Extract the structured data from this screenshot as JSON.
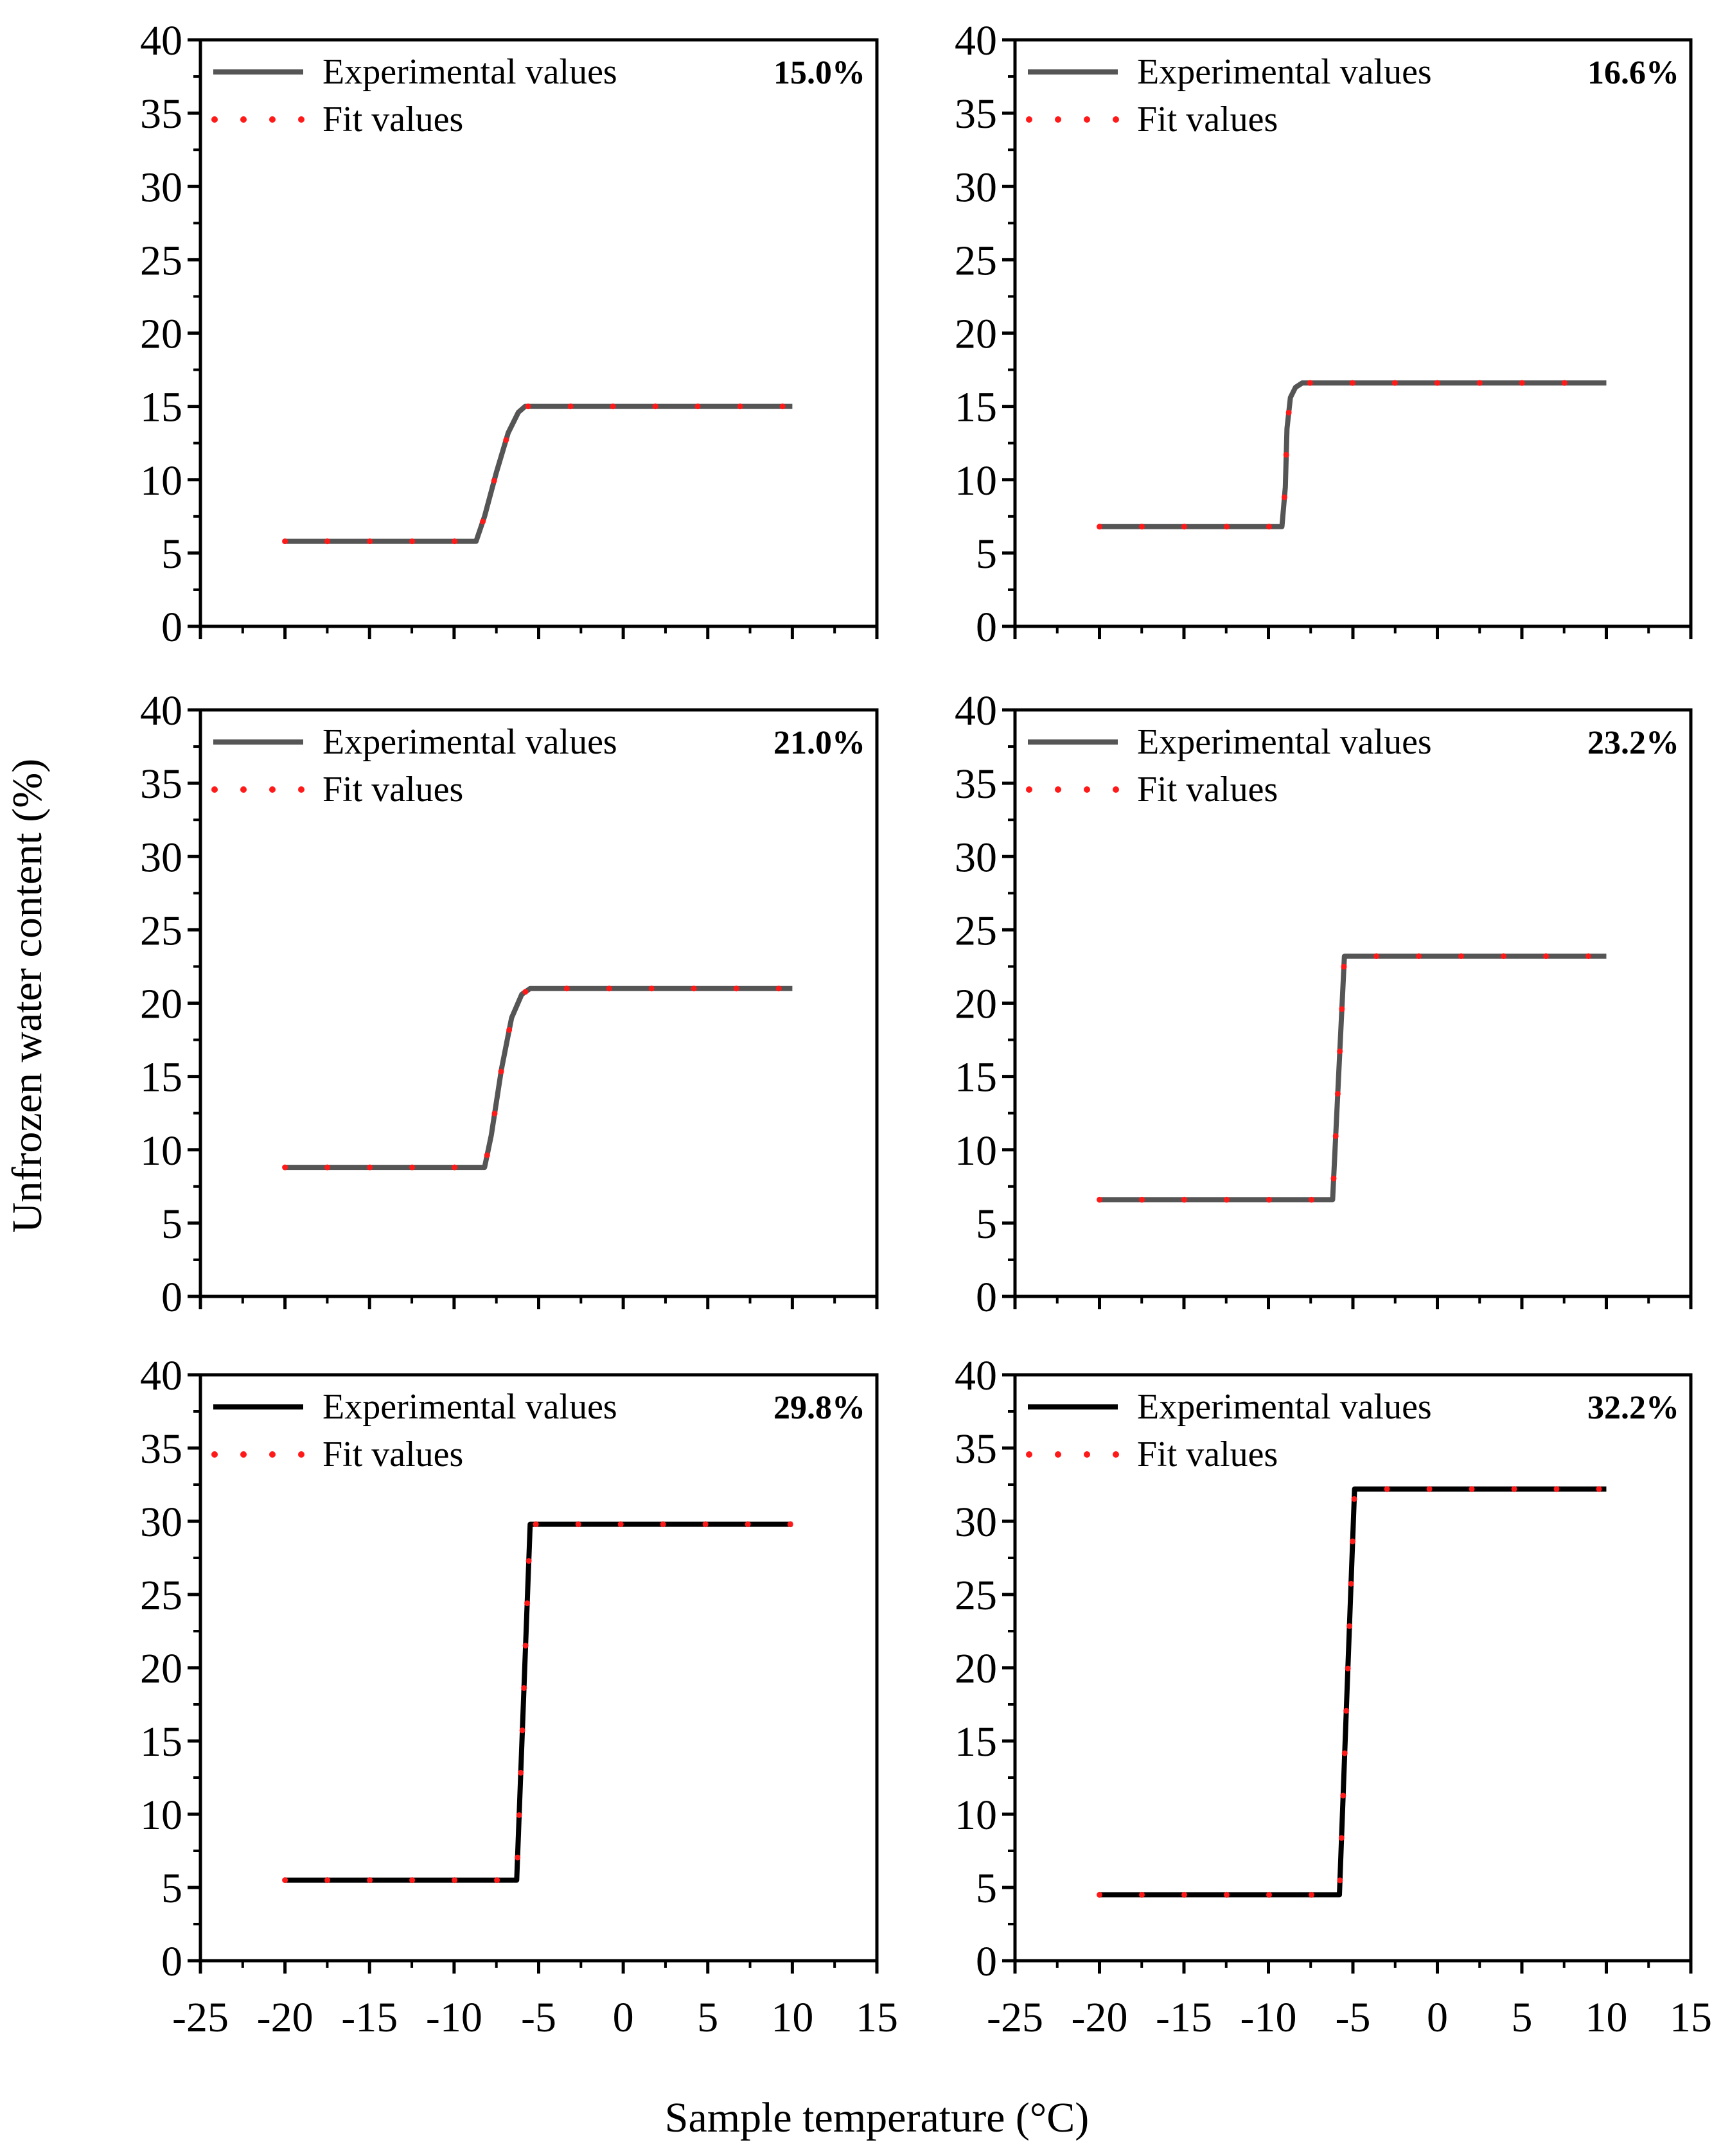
{
  "figure": {
    "xlabel": "Sample temperature (°C)",
    "ylabel": "Unfrozen water content (%)"
  },
  "colors": {
    "fit": "#ff1a1a",
    "experimental_dark": "#000000",
    "experimental_gray": "#555555",
    "axes": "#000000"
  },
  "legend": {
    "experimental": "Experimental values",
    "fit": "Fit values"
  },
  "chart_data": [
    {
      "type": "line",
      "panel_label": "15.0%",
      "xlim": [
        -25,
        15
      ],
      "ylim": [
        0,
        40
      ],
      "xticks": [
        -25,
        -20,
        -15,
        -10,
        -5,
        0,
        5,
        10,
        15
      ],
      "yticks": [
        0,
        5,
        10,
        15,
        20,
        25,
        30,
        35,
        40
      ],
      "experimental_color": "gray",
      "series": [
        {
          "name": "Experimental values",
          "x": [
            -20,
            -8.7,
            -8.2,
            -7.5,
            -6.8,
            -6.2,
            -5.8,
            10
          ],
          "y": [
            5.8,
            5.8,
            7.5,
            10.5,
            13.2,
            14.6,
            15.0,
            15.0
          ]
        },
        {
          "name": "Fit values",
          "x": [
            -20,
            -8.7,
            -8.2,
            -7.5,
            -6.8,
            -6.2,
            -5.8,
            10
          ],
          "y": [
            5.8,
            5.8,
            7.5,
            10.5,
            13.2,
            14.6,
            15.0,
            15.0
          ]
        }
      ]
    },
    {
      "type": "line",
      "panel_label": "16.6%",
      "xlim": [
        -25,
        15
      ],
      "ylim": [
        0,
        40
      ],
      "xticks": [
        -25,
        -20,
        -15,
        -10,
        -5,
        0,
        5,
        10,
        15
      ],
      "yticks": [
        0,
        5,
        10,
        15,
        20,
        25,
        30,
        35,
        40
      ],
      "experimental_color": "gray",
      "series": [
        {
          "name": "Experimental values",
          "x": [
            -20,
            -9.2,
            -9.0,
            -8.9,
            -8.7,
            -8.4,
            -8.0,
            10
          ],
          "y": [
            6.8,
            6.8,
            9.5,
            13.5,
            15.6,
            16.3,
            16.6,
            16.6
          ]
        },
        {
          "name": "Fit values",
          "x": [
            -20,
            -9.2,
            -9.0,
            -8.9,
            -8.7,
            -8.4,
            -8.0,
            10
          ],
          "y": [
            6.8,
            6.8,
            9.5,
            13.5,
            15.6,
            16.3,
            16.6,
            16.6
          ]
        }
      ]
    },
    {
      "type": "line",
      "panel_label": "21.0%",
      "xlim": [
        -25,
        15
      ],
      "ylim": [
        0,
        40
      ],
      "xticks": [
        -25,
        -20,
        -15,
        -10,
        -5,
        0,
        5,
        10,
        15
      ],
      "yticks": [
        0,
        5,
        10,
        15,
        20,
        25,
        30,
        35,
        40
      ],
      "experimental_color": "gray",
      "series": [
        {
          "name": "Experimental values",
          "x": [
            -20,
            -8.2,
            -7.8,
            -7.2,
            -6.6,
            -6.0,
            -5.5,
            10
          ],
          "y": [
            8.8,
            8.8,
            11.0,
            15.5,
            19.0,
            20.6,
            21.0,
            21.0
          ]
        },
        {
          "name": "Fit values",
          "x": [
            -20,
            -8.2,
            -7.8,
            -7.2,
            -6.6,
            -6.0,
            -5.5,
            10
          ],
          "y": [
            8.8,
            8.8,
            11.0,
            15.5,
            19.0,
            20.6,
            21.0,
            21.0
          ]
        }
      ]
    },
    {
      "type": "line",
      "panel_label": "23.2%",
      "xlim": [
        -25,
        15
      ],
      "ylim": [
        0,
        40
      ],
      "xticks": [
        -25,
        -20,
        -15,
        -10,
        -5,
        0,
        5,
        10,
        15
      ],
      "yticks": [
        0,
        5,
        10,
        15,
        20,
        25,
        30,
        35,
        40
      ],
      "experimental_color": "gray",
      "series": [
        {
          "name": "Experimental values",
          "x": [
            -20,
            -6.2,
            -5.5,
            10
          ],
          "y": [
            6.6,
            6.6,
            23.2,
            23.2
          ]
        },
        {
          "name": "Fit values",
          "x": [
            -20,
            -6.2,
            -5.5,
            10
          ],
          "y": [
            6.6,
            6.6,
            23.2,
            23.2
          ]
        }
      ]
    },
    {
      "type": "line",
      "panel_label": "29.8%",
      "xlim": [
        -25,
        15
      ],
      "ylim": [
        0,
        40
      ],
      "xticks": [
        -25,
        -20,
        -15,
        -10,
        -5,
        0,
        5,
        10,
        15
      ],
      "yticks": [
        0,
        5,
        10,
        15,
        20,
        25,
        30,
        35,
        40
      ],
      "experimental_color": "dark",
      "series": [
        {
          "name": "Experimental values",
          "x": [
            -20,
            -6.3,
            -5.5,
            10
          ],
          "y": [
            5.5,
            5.5,
            29.8,
            29.8
          ]
        },
        {
          "name": "Fit values",
          "x": [
            -20,
            -6.3,
            -5.5,
            10
          ],
          "y": [
            5.5,
            5.5,
            29.8,
            29.8
          ]
        }
      ]
    },
    {
      "type": "line",
      "panel_label": "32.2%",
      "xlim": [
        -25,
        15
      ],
      "ylim": [
        0,
        40
      ],
      "xticks": [
        -25,
        -20,
        -15,
        -10,
        -5,
        0,
        5,
        10,
        15
      ],
      "yticks": [
        0,
        5,
        10,
        15,
        20,
        25,
        30,
        35,
        40
      ],
      "experimental_color": "dark",
      "series": [
        {
          "name": "Experimental values",
          "x": [
            -20,
            -5.8,
            -4.9,
            10
          ],
          "y": [
            4.5,
            4.5,
            32.2,
            32.2
          ]
        },
        {
          "name": "Fit values",
          "x": [
            -20,
            -5.8,
            -4.9,
            10
          ],
          "y": [
            4.5,
            4.5,
            32.2,
            32.2
          ]
        }
      ]
    }
  ]
}
